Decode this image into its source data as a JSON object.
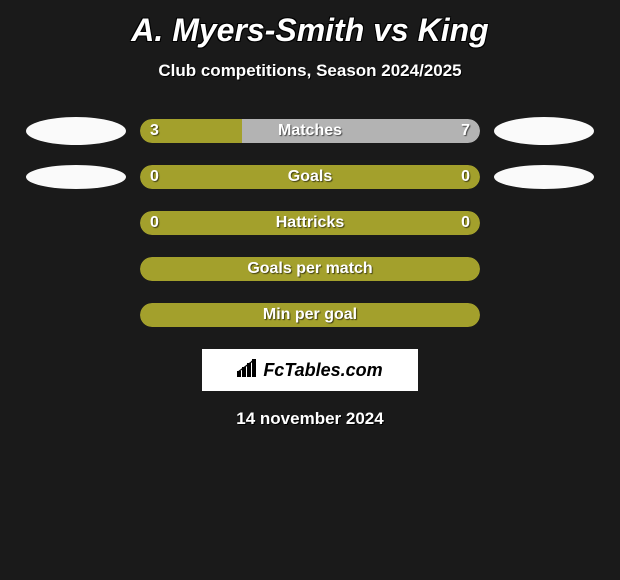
{
  "title": "A. Myers-Smith vs King",
  "subtitle": "Club competitions, Season 2024/2025",
  "date": "14 november 2024",
  "logo_text": "FcTables.com",
  "colors": {
    "background": "#1a1a1a",
    "bar_green": "#a3a02c",
    "bar_grey": "#b3b3b3",
    "avatar": "#fafafa",
    "text": "#ffffff"
  },
  "rows": [
    {
      "label": "Matches",
      "left_value": "3",
      "right_value": "7",
      "left_pct": 30,
      "right_pct": 70,
      "left_color": "#a3a02c",
      "right_color": "#b3b3b3",
      "show_avatars": true,
      "avatar_small": false
    },
    {
      "label": "Goals",
      "left_value": "0",
      "right_value": "0",
      "left_pct": 100,
      "right_pct": 0,
      "left_color": "#a3a02c",
      "right_color": "#a3a02c",
      "show_avatars": true,
      "avatar_small": true
    },
    {
      "label": "Hattricks",
      "left_value": "0",
      "right_value": "0",
      "left_pct": 100,
      "right_pct": 0,
      "left_color": "#a3a02c",
      "right_color": "#a3a02c",
      "show_avatars": false
    },
    {
      "label": "Goals per match",
      "left_value": "",
      "right_value": "",
      "left_pct": 100,
      "right_pct": 0,
      "left_color": "#a3a02c",
      "right_color": "#a3a02c",
      "show_avatars": false
    },
    {
      "label": "Min per goal",
      "left_value": "",
      "right_value": "",
      "left_pct": 100,
      "right_pct": 0,
      "left_color": "#a3a02c",
      "right_color": "#a3a02c",
      "show_avatars": false
    }
  ]
}
